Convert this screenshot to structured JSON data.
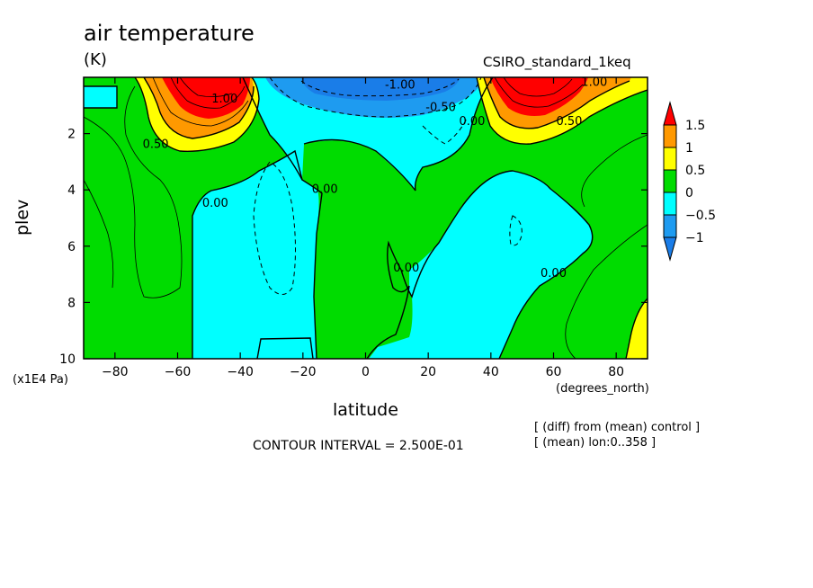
{
  "header": {
    "title": "air temperature",
    "units": "(K)",
    "model": "CSIRO_standard_1keq"
  },
  "axes": {
    "xlabel": "latitude",
    "xunits": "(degrees_north)",
    "ylabel": "plev",
    "yunits": "(x1E4 Pa)"
  },
  "footer": {
    "contour_interval": "CONTOUR INTERVAL = 2.500E-01",
    "note_diff": "[ (diff) from (mean) control ]",
    "note_mean": "[ (mean) lon:0..358 ]"
  },
  "colors": {
    "lt_minus1": "#1a7de8",
    "m1_m05": "#1e9bf0",
    "m05_0": "#00ffff",
    "0_05": "#00dc00",
    "05_1": "#ffff00",
    "1_15": "#ff9900",
    "gt_15": "#ff0000"
  },
  "chart_data": {
    "type": "contour",
    "x": {
      "label": "latitude",
      "units": "degrees_north",
      "range": [
        -90,
        90
      ],
      "ticks": [
        -80,
        -60,
        -40,
        -20,
        0,
        20,
        40,
        60,
        80
      ]
    },
    "y": {
      "label": "plev",
      "units": "x1E4 Pa",
      "range": [
        10,
        0
      ],
      "ticks": [
        2,
        4,
        6,
        8,
        10
      ]
    },
    "contour_interval": 0.25,
    "colorbar": {
      "levels": [
        -1,
        -0.5,
        0,
        0.5,
        1,
        1.5
      ],
      "labels": [
        "1.5",
        "1",
        "0.5",
        "0",
        "-0.5",
        "-1"
      ]
    },
    "contour_labels": [
      {
        "text": "1.00",
        "lat": -45,
        "plev": 0.9
      },
      {
        "text": "0.50",
        "lat": -67,
        "plev": 2.5
      },
      {
        "text": "0.00",
        "lat": -48,
        "plev": 4.6
      },
      {
        "text": "0.00",
        "lat": -13,
        "plev": 4.1
      },
      {
        "text": "-1.00",
        "lat": 11,
        "plev": 0.4
      },
      {
        "text": "-0.50",
        "lat": 24,
        "plev": 1.2
      },
      {
        "text": "0.00",
        "lat": 34,
        "plev": 1.7
      },
      {
        "text": "1.00",
        "lat": 73,
        "plev": 0.3
      },
      {
        "text": "0.50",
        "lat": 65,
        "plev": 1.7
      },
      {
        "text": "0.00",
        "lat": 13,
        "plev": 6.9
      },
      {
        "text": "0.00",
        "lat": 60,
        "plev": 7.1
      }
    ]
  }
}
